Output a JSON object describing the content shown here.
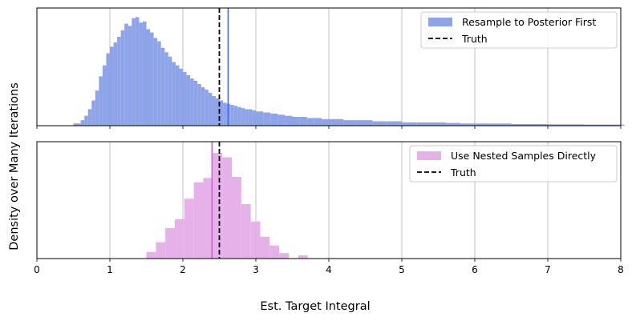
{
  "chart_data": [
    {
      "type": "histogram",
      "panel": "top",
      "xlim": [
        0,
        8
      ],
      "x_ticks": [
        "0",
        "1",
        "2",
        "3",
        "4",
        "5",
        "6",
        "7",
        "8"
      ],
      "grid": "vertical",
      "legend_position": "top-right",
      "series": [
        {
          "name": "Resample to Posterior First",
          "kind": "histogram",
          "color": "#8da4e9",
          "bins": [
            [
              0.5,
              0.02
            ],
            [
              0.6,
              0.05
            ],
            [
              0.65,
              0.09
            ],
            [
              0.7,
              0.15
            ],
            [
              0.75,
              0.23
            ],
            [
              0.8,
              0.32
            ],
            [
              0.85,
              0.45
            ],
            [
              0.9,
              0.55
            ],
            [
              0.95,
              0.66
            ],
            [
              1.0,
              0.72
            ],
            [
              1.05,
              0.76
            ],
            [
              1.1,
              0.81
            ],
            [
              1.15,
              0.87
            ],
            [
              1.2,
              0.93
            ],
            [
              1.25,
              0.91
            ],
            [
              1.3,
              0.98
            ],
            [
              1.35,
              0.99
            ],
            [
              1.4,
              0.94
            ],
            [
              1.45,
              0.95
            ],
            [
              1.5,
              0.88
            ],
            [
              1.55,
              0.85
            ],
            [
              1.6,
              0.8
            ],
            [
              1.65,
              0.77
            ],
            [
              1.7,
              0.71
            ],
            [
              1.75,
              0.67
            ],
            [
              1.8,
              0.63
            ],
            [
              1.85,
              0.58
            ],
            [
              1.9,
              0.55
            ],
            [
              1.95,
              0.52
            ],
            [
              2.0,
              0.49
            ],
            [
              2.05,
              0.46
            ],
            [
              2.1,
              0.43
            ],
            [
              2.15,
              0.41
            ],
            [
              2.2,
              0.38
            ],
            [
              2.25,
              0.35
            ],
            [
              2.3,
              0.33
            ],
            [
              2.35,
              0.3
            ],
            [
              2.4,
              0.27
            ],
            [
              2.45,
              0.25
            ],
            [
              2.5,
              0.23
            ],
            [
              2.55,
              0.21
            ],
            [
              2.6,
              0.2
            ],
            [
              2.65,
              0.19
            ],
            [
              2.7,
              0.18
            ],
            [
              2.75,
              0.17
            ],
            [
              2.8,
              0.16
            ],
            [
              2.85,
              0.15
            ],
            [
              2.9,
              0.15
            ],
            [
              2.95,
              0.14
            ],
            [
              3.0,
              0.13
            ],
            [
              3.1,
              0.12
            ],
            [
              3.2,
              0.11
            ],
            [
              3.3,
              0.1
            ],
            [
              3.4,
              0.09
            ],
            [
              3.5,
              0.08
            ],
            [
              3.6,
              0.08
            ],
            [
              3.7,
              0.07
            ],
            [
              3.8,
              0.07
            ],
            [
              3.9,
              0.06
            ],
            [
              4.0,
              0.06
            ],
            [
              4.2,
              0.05
            ],
            [
              4.4,
              0.05
            ],
            [
              4.6,
              0.04
            ],
            [
              4.8,
              0.04
            ],
            [
              5.0,
              0.03
            ],
            [
              5.2,
              0.03
            ],
            [
              5.4,
              0.03
            ],
            [
              5.6,
              0.025
            ],
            [
              5.8,
              0.02
            ],
            [
              6.0,
              0.02
            ],
            [
              6.5,
              0.015
            ],
            [
              7.0,
              0.012
            ],
            [
              7.5,
              0.01
            ],
            [
              7.95,
              0.01
            ]
          ]
        },
        {
          "name": "Truth",
          "kind": "vline",
          "x": 2.5,
          "style": "dashed",
          "color": "#000000"
        },
        {
          "kind": "vline",
          "x": 2.62,
          "style": "solid",
          "color": "#4169e1"
        }
      ]
    },
    {
      "type": "histogram",
      "panel": "bottom",
      "xlim": [
        0,
        8
      ],
      "x_ticks": [
        "0",
        "1",
        "2",
        "3",
        "4",
        "5",
        "6",
        "7",
        "8"
      ],
      "grid": "vertical",
      "legend_position": "top-right",
      "series": [
        {
          "name": "Use Nested Samples Directly",
          "kind": "histogram",
          "color": "#e6b0e9",
          "bins": [
            [
              1.5,
              0.06
            ],
            [
              1.63,
              0.15
            ],
            [
              1.76,
              0.28
            ],
            [
              1.89,
              0.36
            ],
            [
              2.02,
              0.55
            ],
            [
              2.15,
              0.7
            ],
            [
              2.28,
              0.74
            ],
            [
              2.41,
              0.97
            ],
            [
              2.54,
              0.93
            ],
            [
              2.67,
              0.75
            ],
            [
              2.8,
              0.5
            ],
            [
              2.93,
              0.34
            ],
            [
              3.06,
              0.2
            ],
            [
              3.19,
              0.12
            ],
            [
              3.32,
              0.05
            ],
            [
              3.45,
              0.0
            ],
            [
              3.58,
              0.03
            ]
          ]
        },
        {
          "name": "Truth",
          "kind": "vline",
          "x": 2.5,
          "style": "dashed",
          "color": "#000000"
        },
        {
          "kind": "vline",
          "x": 2.4,
          "style": "solid",
          "color": "#c062c8"
        }
      ]
    }
  ],
  "labels": {
    "x_axis_title": "Est. Target Integral",
    "y_axis_title": "Density over Many Iterations",
    "legend_top_1": "Resample to Posterior First",
    "legend_top_2": "Truth",
    "legend_bottom_1": "Use Nested Samples Directly",
    "legend_bottom_2": "Truth"
  }
}
